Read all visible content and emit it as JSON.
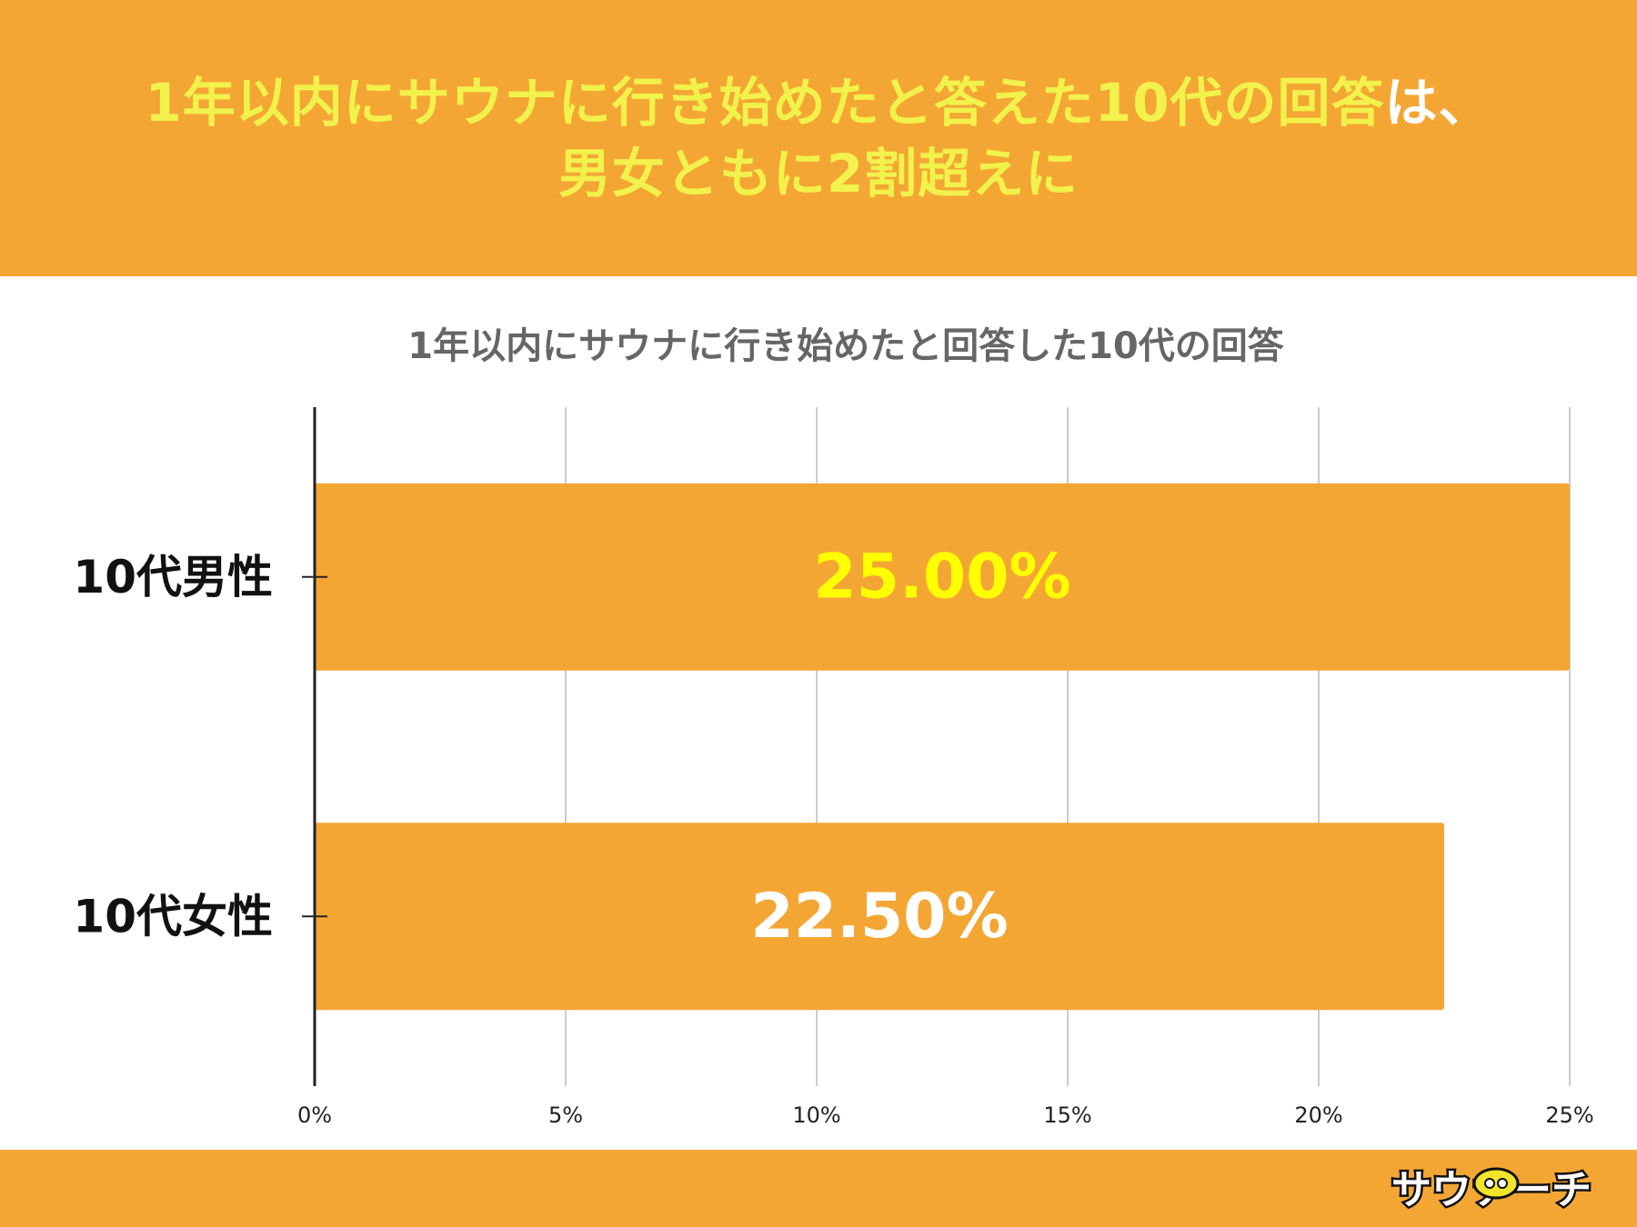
{
  "header": {
    "headline_line1_highlight": "1年以内にサウナに行き始めたと答えた10代の回答",
    "headline_line1_tail": "は、",
    "headline_line2": "男女ともに2割超えに"
  },
  "logo": {
    "text": "サウナーチ"
  },
  "colors": {
    "accent": "#f4a634",
    "highlight_text": "#f1f24b",
    "bar_label_top": "#ffff00",
    "bar_label_other": "#ffffff"
  },
  "chart_data": {
    "type": "bar",
    "orientation": "horizontal",
    "title": "1年以内にサウナに行き始めたと回答した10代の回答",
    "categories": [
      "10代男性",
      "10代女性"
    ],
    "values": [
      25.0,
      22.5
    ],
    "value_labels": [
      "25.00%",
      "22.50%"
    ],
    "x_ticks": [
      "0%",
      "5%",
      "10%",
      "15%",
      "20%",
      "25%"
    ],
    "xlim": [
      0,
      25
    ],
    "grid": true,
    "legend": "none",
    "xlabel": "",
    "ylabel": ""
  }
}
